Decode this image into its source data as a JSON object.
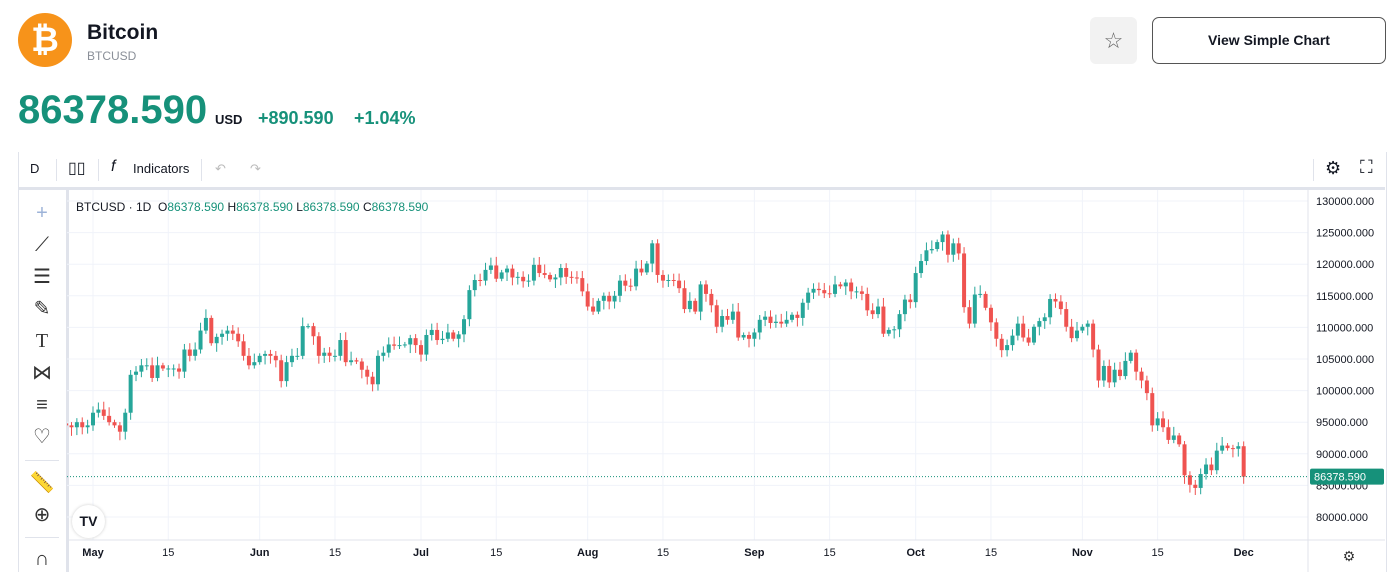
{
  "header": {
    "logo_icon": "bitcoin-icon",
    "name": "Bitcoin",
    "ticker": "BTCUSD",
    "star_icon": "star-icon",
    "simple_chart_label": "View Simple Chart"
  },
  "quote": {
    "price": "86378.590",
    "currency": "USD",
    "change": "+890.590",
    "change_pct": "+1.04%",
    "color": "#16917a"
  },
  "toolbar": {
    "interval": "D",
    "chart_type_icon": "candles-icon",
    "indicators_label": "Indicators",
    "undo_icon": "undo-icon",
    "redo_icon": "redo-icon",
    "settings_icon": "gear-icon",
    "fullscreen_icon": "fullscreen-icon"
  },
  "left_tools": [
    "crosshair-icon",
    "trend-line-icon",
    "fib-icon",
    "brush-icon",
    "text-icon",
    "pattern-icon",
    "forecast-icon",
    "heart-icon",
    "ruler-icon",
    "zoom-in-icon",
    "magnet-icon"
  ],
  "legend": {
    "symbol": "BTCUSD · 1D",
    "o_label": "O",
    "o": "86378.590",
    "h_label": "H",
    "h": "86378.590",
    "l_label": "L",
    "l": "86378.590",
    "c_label": "C",
    "c": "86378.590"
  },
  "chart_data": {
    "type": "candlestick",
    "symbol": "BTCUSD",
    "interval": "1D",
    "start_date": "2025-04-26",
    "end_date": "2025-12-01",
    "up_color": "#26a69a",
    "down_color": "#ef5350",
    "ylim": [
      77000,
      131500
    ],
    "y_ticks": [
      "130000.000",
      "125000.000",
      "120000.000",
      "115000.000",
      "110000.000",
      "105000.000",
      "100000.000",
      "95000.000",
      "90000.000",
      "85000.000",
      "80000.000"
    ],
    "x_ticks": [
      "May",
      "15",
      "Jun",
      "15",
      "Jul",
      "15",
      "Aug",
      "15",
      "Sep",
      "15",
      "Oct",
      "15",
      "Nov",
      "15",
      "Dec"
    ],
    "last_price_label": "86378.590",
    "grid": true,
    "closes": [
      94.5,
      94.2,
      95,
      94.2,
      94.5,
      96.5,
      97,
      96,
      95,
      94.5,
      93.5,
      96.5,
      102.5,
      103,
      104,
      104,
      102,
      104,
      103.5,
      103.5,
      103.5,
      103,
      106.5,
      105.5,
      106.5,
      109.5,
      111.5,
      107.5,
      108.5,
      109,
      109.5,
      109,
      107.8,
      105.5,
      104,
      104.5,
      105.5,
      105.8,
      105.5,
      104.8,
      101.5,
      104.5,
      105.5,
      105.5,
      110.2,
      110.2,
      108.6,
      105.5,
      106,
      105.5,
      105.5,
      108,
      104.5,
      104.8,
      104.6,
      103.3,
      102.2,
      101,
      105.5,
      106,
      107.3,
      107.1,
      107.2,
      107.3,
      108.3,
      107.2,
      105.7,
      108.8,
      109.6,
      108,
      108.2,
      109.2,
      108.2,
      108.9,
      111.3,
      115.9,
      117.5,
      117.4,
      119.1,
      119.8,
      117.7,
      118.7,
      119.3,
      117.9,
      118,
      117.3,
      117.4,
      119.9,
      118.6,
      118.3,
      117.6,
      117.9,
      119.4,
      118,
      117.9,
      117.8,
      115.7,
      113.3,
      112.5,
      114.2,
      115,
      114.1,
      115,
      117.4,
      116.6,
      116.5,
      119.3,
      118.7,
      120.1,
      123.3,
      118.3,
      117.4,
      117.5,
      117.4,
      116.2,
      112.9,
      114.2,
      112.5,
      116.8,
      115.3,
      113.5,
      110.1,
      111.8,
      111.2,
      112.5,
      108.4,
      108.8,
      108.2,
      109.2,
      111.2,
      111.7,
      110.7,
      110.9,
      110.6,
      111.2,
      112,
      111.5,
      113.9,
      115.5,
      116.1,
      115.9,
      115.4,
      115.3,
      116.8,
      116.5,
      117.1,
      115.7,
      115.7,
      115.3,
      112.7,
      112.1,
      113.3,
      109,
      109.6,
      109.7,
      112.1,
      114.4,
      114,
      118.6,
      120.5,
      122.2,
      122.4,
      123.5,
      124.7,
      121.5,
      123.3,
      121.7,
      113.2,
      110.6,
      115.2,
      115.3,
      113.1,
      110.8,
      108.2,
      106.4,
      107.2,
      108.7,
      110.6,
      108.4,
      107.6,
      110.1,
      111,
      111.6,
      114.5,
      114.1,
      112.9,
      110.1,
      108.3,
      109.5,
      110.1,
      110.6,
      106.5,
      101.6,
      103.9,
      101.3,
      103.3,
      102.3,
      104.7,
      106,
      103,
      101.6,
      99.6,
      94.5,
      95.6,
      94.2,
      92.2,
      92.9,
      91.5,
      86.6,
      85.1,
      84.6,
      86.8,
      88.3,
      87.4,
      90.5,
      91.3,
      90.9,
      90.8,
      91.2,
      86.37859
    ],
    "closes_unit": "thousand USD"
  }
}
